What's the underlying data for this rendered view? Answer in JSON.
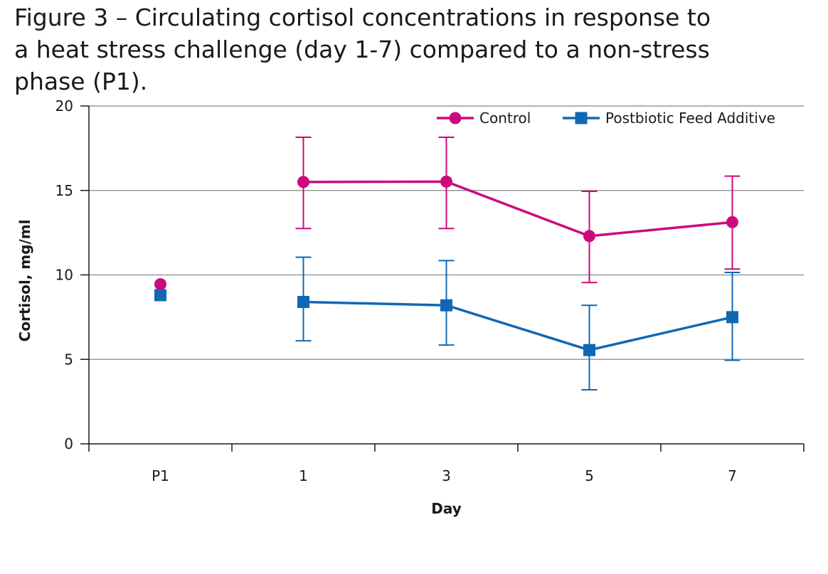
{
  "colors": {
    "control": "#cc0a7e",
    "postbiotic": "#1068b4",
    "grid": "#9a9a9a",
    "axis": "#1a1a1a"
  },
  "chart_data": {
    "type": "line",
    "title": "Figure 3 – Circulating cortisol concentrations in response to\na heat stress challenge (day 1-7) compared to a non-stress\nphase (P1).",
    "xlabel": "Day",
    "ylabel": "Cortisol, mg/ml",
    "categories": [
      "P1",
      "1",
      "3",
      "5",
      "7"
    ],
    "ylim": [
      0,
      20
    ],
    "yticks": [
      0,
      5,
      10,
      15,
      20
    ],
    "grid": "horizontal",
    "legend_position": "top-right",
    "series": [
      {
        "name": "Control",
        "marker": "circle",
        "color": "#cc0a7e",
        "values": [
          9.45,
          15.5,
          15.52,
          12.3,
          13.12
        ],
        "error_upper": [
          null,
          18.15,
          18.15,
          14.95,
          15.85
        ],
        "error_lower": [
          null,
          12.75,
          12.75,
          9.55,
          10.35
        ]
      },
      {
        "name": "Postbiotic Feed Additive",
        "marker": "square",
        "color": "#1068b4",
        "values": [
          8.8,
          8.4,
          8.2,
          5.55,
          7.5
        ],
        "error_upper": [
          null,
          11.05,
          10.85,
          8.2,
          10.15
        ],
        "error_lower": [
          null,
          6.1,
          5.85,
          3.2,
          4.95
        ]
      }
    ]
  }
}
